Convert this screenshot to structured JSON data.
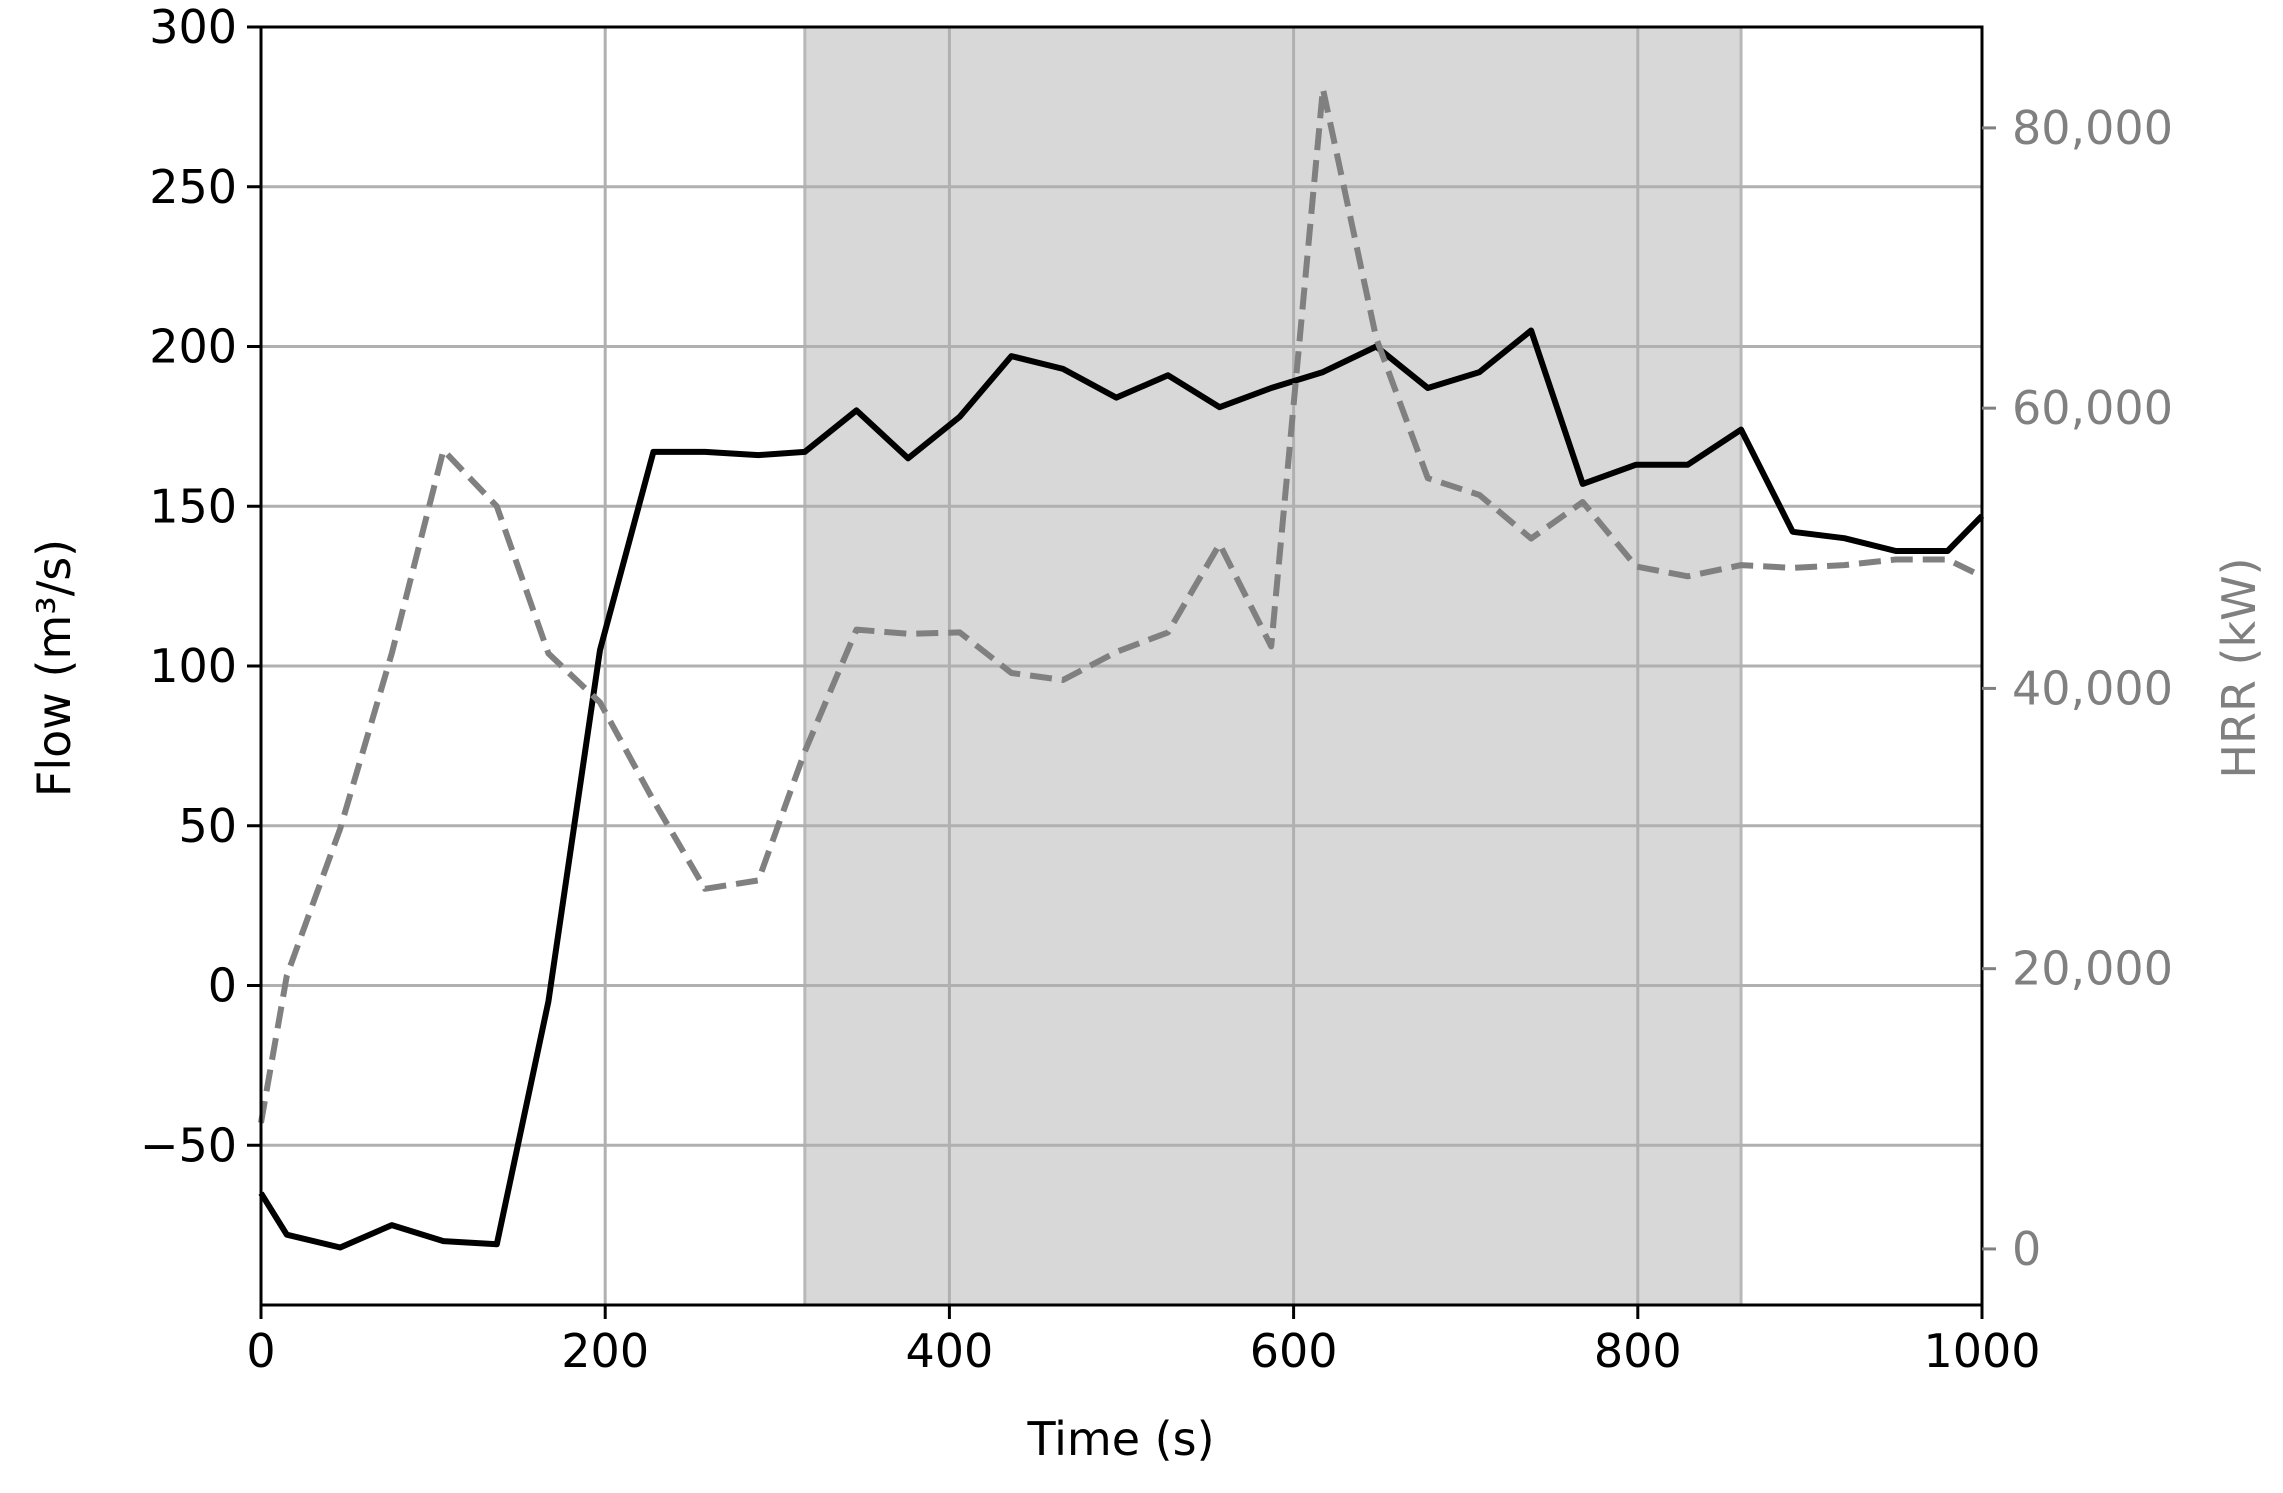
{
  "chart_data": {
    "type": "line",
    "title": "",
    "xlabel": "Time (s)",
    "ylabel": "Flow (m³/s)",
    "y2label": "HRR (kW)",
    "xlim": [
      0,
      1000
    ],
    "ylim": [
      -100,
      300
    ],
    "y2lim": [
      -4000,
      87200
    ],
    "x_ticks": [
      0,
      200,
      400,
      600,
      800,
      1000
    ],
    "y_ticks": [
      -50,
      0,
      50,
      100,
      150,
      200,
      250,
      300
    ],
    "y2_ticks": [
      0,
      20000,
      40000,
      60000,
      80000
    ],
    "x_tick_labels": [
      "0",
      "200",
      "400",
      "600",
      "800",
      "1000"
    ],
    "y_tick_labels": [
      "−50",
      "0",
      "50",
      "100",
      "150",
      "200",
      "250",
      "300"
    ],
    "y2_tick_labels": [
      "0",
      "20,000",
      "40,000",
      "60,000",
      "80,000"
    ],
    "grid": true,
    "shaded_region": [
      316,
      860
    ],
    "series": [
      {
        "axis": "left",
        "color": "#000000",
        "style": "solid",
        "x": [
          0,
          15,
          46,
          76,
          106,
          137,
          167,
          197,
          228,
          258,
          289,
          316,
          346,
          376,
          406,
          436,
          466,
          497,
          527,
          557,
          587,
          617,
          648,
          678,
          708,
          738,
          768,
          799,
          829,
          860,
          890,
          920,
          950,
          980,
          1000
        ],
        "values": [
          -65,
          -78,
          -82,
          -75,
          -80,
          -81,
          -5,
          105,
          167,
          167,
          166,
          167,
          180,
          165,
          178,
          197,
          193,
          184,
          191,
          181,
          187,
          192,
          200,
          187,
          192,
          205,
          157,
          163,
          163,
          174,
          142,
          140,
          136,
          136,
          147
        ]
      },
      {
        "axis": "right",
        "color": "#808080",
        "style": "dashed",
        "x": [
          0,
          15,
          46,
          76,
          106,
          137,
          167,
          197,
          228,
          258,
          289,
          316,
          346,
          376,
          406,
          436,
          466,
          497,
          527,
          557,
          587,
          617,
          648,
          678,
          708,
          738,
          768,
          799,
          829,
          860,
          890,
          920,
          950,
          980,
          1000
        ],
        "values": [
          9000,
          19500,
          30000,
          42500,
          57000,
          53000,
          42500,
          39000,
          32000,
          25700,
          26300,
          35500,
          44200,
          43900,
          44000,
          41100,
          40600,
          42600,
          44000,
          50300,
          43000,
          82800,
          65000,
          55000,
          53800,
          50700,
          53300,
          48700,
          48000,
          48800,
          48600,
          48800,
          49200,
          49200,
          48000
        ]
      }
    ]
  }
}
